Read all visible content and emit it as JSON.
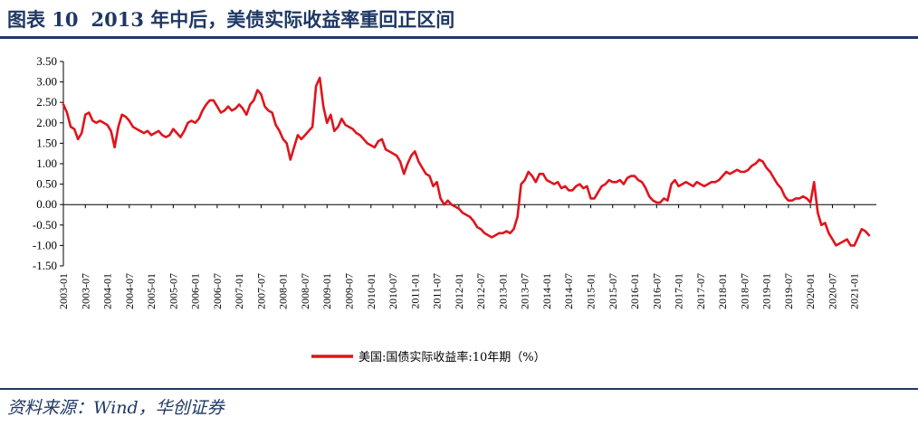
{
  "header": {
    "figure_label": "图表 10",
    "title": "2013 年中后，美债实际收益率重回正区间"
  },
  "footer": {
    "source": "资料来源：Wind，华创证券"
  },
  "colors": {
    "series": "#e0141c",
    "rule": "#1f3864",
    "axis": "#000000"
  },
  "chart_data": {
    "type": "line",
    "title": "2013 年中后，美债实际收益率重回正区间",
    "xlabel": "",
    "ylabel": "",
    "ylim": [
      -1.5,
      3.5
    ],
    "xlim": [
      "2003-01",
      "2021-07"
    ],
    "grid": false,
    "legend_position": "bottom-center",
    "y_ticks": [
      "3.50",
      "3.00",
      "2.50",
      "2.00",
      "1.50",
      "1.00",
      "0.50",
      "0.00",
      "-0.50",
      "-1.00",
      "-1.50"
    ],
    "x_ticks": [
      "2003-01",
      "2003-07",
      "2004-01",
      "2004-07",
      "2005-01",
      "2005-07",
      "2006-01",
      "2006-07",
      "2007-01",
      "2007-07",
      "2008-01",
      "2008-07",
      "2009-01",
      "2009-07",
      "2010-01",
      "2010-07",
      "2011-01",
      "2011-07",
      "2012-01",
      "2012-07",
      "2013-01",
      "2013-07",
      "2014-01",
      "2014-07",
      "2015-01",
      "2015-07",
      "2016-01",
      "2016-07",
      "2017-01",
      "2017-07",
      "2018-01",
      "2018-07",
      "2019-01",
      "2019-07",
      "2020-01",
      "2020-07",
      "2021-01"
    ],
    "series": [
      {
        "name": "美国:国债实际收益率:10年期（%）",
        "x": [
          "2003-01",
          "2003-02",
          "2003-03",
          "2003-04",
          "2003-05",
          "2003-06",
          "2003-07",
          "2003-08",
          "2003-09",
          "2003-10",
          "2003-11",
          "2003-12",
          "2004-01",
          "2004-02",
          "2004-03",
          "2004-04",
          "2004-05",
          "2004-06",
          "2004-07",
          "2004-08",
          "2004-09",
          "2004-10",
          "2004-11",
          "2004-12",
          "2005-01",
          "2005-02",
          "2005-03",
          "2005-04",
          "2005-05",
          "2005-06",
          "2005-07",
          "2005-08",
          "2005-09",
          "2005-10",
          "2005-11",
          "2005-12",
          "2006-01",
          "2006-02",
          "2006-03",
          "2006-04",
          "2006-05",
          "2006-06",
          "2006-07",
          "2006-08",
          "2006-09",
          "2006-10",
          "2006-11",
          "2006-12",
          "2007-01",
          "2007-02",
          "2007-03",
          "2007-04",
          "2007-05",
          "2007-06",
          "2007-07",
          "2007-08",
          "2007-09",
          "2007-10",
          "2007-11",
          "2007-12",
          "2008-01",
          "2008-02",
          "2008-03",
          "2008-04",
          "2008-05",
          "2008-06",
          "2008-07",
          "2008-08",
          "2008-09",
          "2008-10",
          "2008-11",
          "2008-12",
          "2009-01",
          "2009-02",
          "2009-03",
          "2009-04",
          "2009-05",
          "2009-06",
          "2009-07",
          "2009-08",
          "2009-09",
          "2009-10",
          "2009-11",
          "2009-12",
          "2010-01",
          "2010-02",
          "2010-03",
          "2010-04",
          "2010-05",
          "2010-06",
          "2010-07",
          "2010-08",
          "2010-09",
          "2010-10",
          "2010-11",
          "2010-12",
          "2011-01",
          "2011-02",
          "2011-03",
          "2011-04",
          "2011-05",
          "2011-06",
          "2011-07",
          "2011-08",
          "2011-09",
          "2011-10",
          "2011-11",
          "2011-12",
          "2012-01",
          "2012-02",
          "2012-03",
          "2012-04",
          "2012-05",
          "2012-06",
          "2012-07",
          "2012-08",
          "2012-09",
          "2012-10",
          "2012-11",
          "2012-12",
          "2013-01",
          "2013-02",
          "2013-03",
          "2013-04",
          "2013-05",
          "2013-06",
          "2013-07",
          "2013-08",
          "2013-09",
          "2013-10",
          "2013-11",
          "2013-12",
          "2014-01",
          "2014-02",
          "2014-03",
          "2014-04",
          "2014-05",
          "2014-06",
          "2014-07",
          "2014-08",
          "2014-09",
          "2014-10",
          "2014-11",
          "2014-12",
          "2015-01",
          "2015-02",
          "2015-03",
          "2015-04",
          "2015-05",
          "2015-06",
          "2015-07",
          "2015-08",
          "2015-09",
          "2015-10",
          "2015-11",
          "2015-12",
          "2016-01",
          "2016-02",
          "2016-03",
          "2016-04",
          "2016-05",
          "2016-06",
          "2016-07",
          "2016-08",
          "2016-09",
          "2016-10",
          "2016-11",
          "2016-12",
          "2017-01",
          "2017-02",
          "2017-03",
          "2017-04",
          "2017-05",
          "2017-06",
          "2017-07",
          "2017-08",
          "2017-09",
          "2017-10",
          "2017-11",
          "2017-12",
          "2018-01",
          "2018-02",
          "2018-03",
          "2018-04",
          "2018-05",
          "2018-06",
          "2018-07",
          "2018-08",
          "2018-09",
          "2018-10",
          "2018-11",
          "2018-12",
          "2019-01",
          "2019-02",
          "2019-03",
          "2019-04",
          "2019-05",
          "2019-06",
          "2019-07",
          "2019-08",
          "2019-09",
          "2019-10",
          "2019-11",
          "2019-12",
          "2020-01",
          "2020-02",
          "2020-03",
          "2020-04",
          "2020-05",
          "2020-06",
          "2020-07",
          "2020-08",
          "2020-09",
          "2020-10",
          "2020-11",
          "2020-12",
          "2021-01",
          "2021-02",
          "2021-03",
          "2021-04",
          "2021-05"
        ],
        "values": [
          2.45,
          2.25,
          1.9,
          1.85,
          1.6,
          1.75,
          2.2,
          2.25,
          2.05,
          2.0,
          2.05,
          2.0,
          1.95,
          1.8,
          1.4,
          1.9,
          2.2,
          2.15,
          2.05,
          1.9,
          1.85,
          1.8,
          1.75,
          1.8,
          1.7,
          1.75,
          1.8,
          1.7,
          1.65,
          1.7,
          1.85,
          1.75,
          1.65,
          1.8,
          2.0,
          2.05,
          2.0,
          2.1,
          2.3,
          2.45,
          2.55,
          2.55,
          2.4,
          2.25,
          2.3,
          2.4,
          2.3,
          2.35,
          2.45,
          2.35,
          2.2,
          2.45,
          2.55,
          2.8,
          2.7,
          2.4,
          2.3,
          2.25,
          1.95,
          1.8,
          1.6,
          1.5,
          1.1,
          1.4,
          1.7,
          1.6,
          1.7,
          1.8,
          1.9,
          2.9,
          3.1,
          2.4,
          2.0,
          2.2,
          1.8,
          1.9,
          2.1,
          1.95,
          1.9,
          1.85,
          1.75,
          1.7,
          1.6,
          1.5,
          1.45,
          1.4,
          1.55,
          1.6,
          1.35,
          1.3,
          1.25,
          1.2,
          1.05,
          0.75,
          1.0,
          1.2,
          1.3,
          1.05,
          0.9,
          0.75,
          0.7,
          0.45,
          0.55,
          0.15,
          0.0,
          0.1,
          0.0,
          -0.05,
          -0.1,
          -0.2,
          -0.25,
          -0.3,
          -0.4,
          -0.55,
          -0.6,
          -0.7,
          -0.75,
          -0.8,
          -0.75,
          -0.7,
          -0.7,
          -0.65,
          -0.7,
          -0.6,
          -0.3,
          0.5,
          0.6,
          0.8,
          0.7,
          0.55,
          0.75,
          0.75,
          0.6,
          0.55,
          0.5,
          0.55,
          0.4,
          0.45,
          0.35,
          0.35,
          0.45,
          0.5,
          0.4,
          0.45,
          0.15,
          0.15,
          0.3,
          0.45,
          0.5,
          0.6,
          0.55,
          0.55,
          0.6,
          0.5,
          0.65,
          0.7,
          0.7,
          0.6,
          0.55,
          0.4,
          0.2,
          0.1,
          0.05,
          0.05,
          0.15,
          0.1,
          0.5,
          0.6,
          0.45,
          0.5,
          0.55,
          0.5,
          0.45,
          0.55,
          0.5,
          0.45,
          0.5,
          0.55,
          0.55,
          0.6,
          0.7,
          0.8,
          0.75,
          0.8,
          0.85,
          0.8,
          0.8,
          0.85,
          0.95,
          1.0,
          1.1,
          1.05,
          0.9,
          0.8,
          0.65,
          0.5,
          0.4,
          0.2,
          0.1,
          0.1,
          0.15,
          0.15,
          0.2,
          0.15,
          0.05,
          0.55,
          -0.2,
          -0.5,
          -0.45,
          -0.7,
          -0.85,
          -1.0,
          -0.95,
          -0.9,
          -0.85,
          -1.0,
          -1.0,
          -0.8,
          -0.6,
          -0.65,
          -0.75
        ]
      }
    ]
  }
}
